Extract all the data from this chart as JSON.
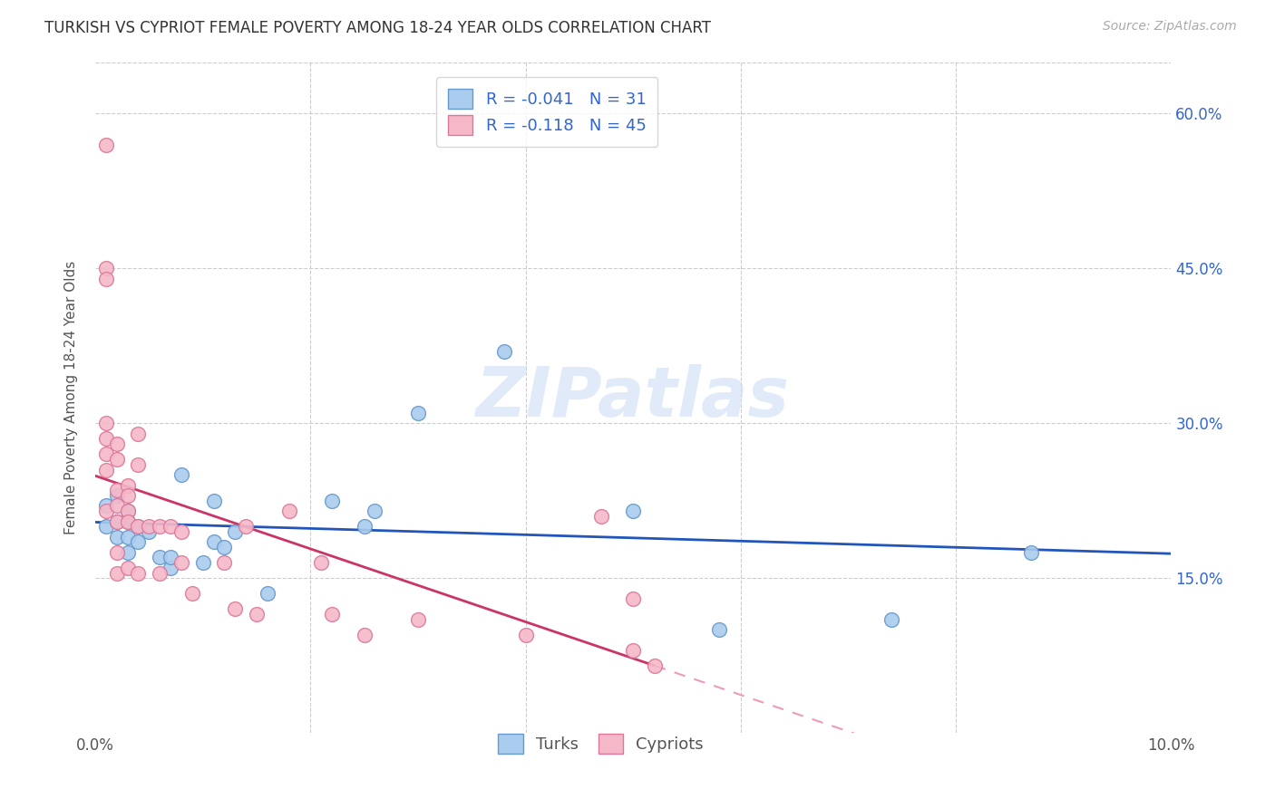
{
  "title": "TURKISH VS CYPRIOT FEMALE POVERTY AMONG 18-24 YEAR OLDS CORRELATION CHART",
  "source": "Source: ZipAtlas.com",
  "ylabel": "Female Poverty Among 18-24 Year Olds",
  "xlabel": "",
  "background_color": "#ffffff",
  "watermark": "ZIPatlas",
  "xlim": [
    0.0,
    0.1
  ],
  "ylim": [
    0.0,
    0.65
  ],
  "x_ticks": [
    0.0,
    0.02,
    0.04,
    0.06,
    0.08,
    0.1
  ],
  "x_tick_labels": [
    "0.0%",
    "",
    "",
    "",
    "",
    "10.0%"
  ],
  "y_ticks": [
    0.0,
    0.15,
    0.3,
    0.45,
    0.6
  ],
  "y_tick_labels_right": [
    "",
    "15.0%",
    "30.0%",
    "45.0%",
    "60.0%"
  ],
  "turks_color": "#aaccee",
  "turks_edge_color": "#6699cc",
  "cypriots_color": "#f5b8c8",
  "cypriots_edge_color": "#dd7799",
  "turks_R": -0.041,
  "turks_N": 31,
  "cypriots_R": -0.118,
  "cypriots_N": 45,
  "legend_R_color": "#3366cc",
  "turks_line_color": "#2255bb",
  "cypriots_line_solid_color": "#cc3366",
  "cypriots_line_dash_color": "#ee99bb",
  "turks_x": [
    0.001,
    0.001,
    0.002,
    0.002,
    0.002,
    0.003,
    0.003,
    0.003,
    0.003,
    0.004,
    0.004,
    0.005,
    0.006,
    0.007,
    0.007,
    0.008,
    0.01,
    0.011,
    0.011,
    0.012,
    0.013,
    0.016,
    0.022,
    0.025,
    0.026,
    0.03,
    0.038,
    0.05,
    0.058,
    0.074,
    0.087
  ],
  "turks_y": [
    0.22,
    0.2,
    0.23,
    0.205,
    0.19,
    0.215,
    0.205,
    0.19,
    0.175,
    0.2,
    0.185,
    0.195,
    0.17,
    0.16,
    0.17,
    0.25,
    0.165,
    0.225,
    0.185,
    0.18,
    0.195,
    0.135,
    0.225,
    0.2,
    0.215,
    0.31,
    0.37,
    0.215,
    0.1,
    0.11,
    0.175
  ],
  "cypriots_x": [
    0.001,
    0.001,
    0.001,
    0.001,
    0.001,
    0.001,
    0.001,
    0.001,
    0.002,
    0.002,
    0.002,
    0.002,
    0.002,
    0.002,
    0.002,
    0.003,
    0.003,
    0.003,
    0.003,
    0.003,
    0.004,
    0.004,
    0.004,
    0.004,
    0.005,
    0.006,
    0.006,
    0.007,
    0.008,
    0.008,
    0.009,
    0.012,
    0.013,
    0.014,
    0.015,
    0.018,
    0.021,
    0.022,
    0.025,
    0.03,
    0.04,
    0.047,
    0.05,
    0.05,
    0.052
  ],
  "cypriots_y": [
    0.57,
    0.45,
    0.44,
    0.3,
    0.285,
    0.27,
    0.255,
    0.215,
    0.28,
    0.265,
    0.235,
    0.22,
    0.205,
    0.175,
    0.155,
    0.24,
    0.23,
    0.215,
    0.205,
    0.16,
    0.29,
    0.26,
    0.2,
    0.155,
    0.2,
    0.2,
    0.155,
    0.2,
    0.195,
    0.165,
    0.135,
    0.165,
    0.12,
    0.2,
    0.115,
    0.215,
    0.165,
    0.115,
    0.095,
    0.11,
    0.095,
    0.21,
    0.13,
    0.08,
    0.065
  ]
}
